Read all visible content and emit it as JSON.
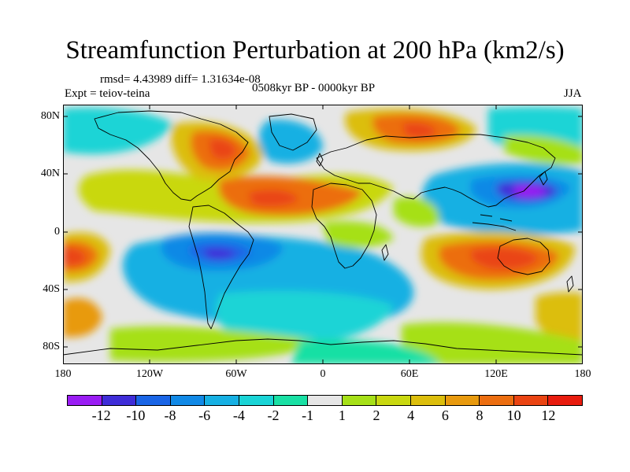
{
  "title": "Streamfunction Perturbation at 200 hPa (km2/s)",
  "stats": "rmsd= 4.43989  diff= 1.31634e-08",
  "experiment": "Expt = teiov-teina",
  "period": "0508kyr BP - 0000kyr BP",
  "season": "JJA",
  "map": {
    "projection": "cylindrical equidistant",
    "lon_range": [
      -180,
      180
    ],
    "lat_range": [
      -90,
      90
    ],
    "y_ticks": [
      "80N",
      "40N",
      "0",
      "40S",
      "80S"
    ],
    "x_ticks": [
      "180",
      "120W",
      "60W",
      "0",
      "60E",
      "120E",
      "180"
    ]
  },
  "colorbar": {
    "colors": [
      "#9a1df4",
      "#3f2dd8",
      "#1a65e6",
      "#1189e6",
      "#16b0e3",
      "#1ad4d6",
      "#19e0a4",
      "#e6e6e6",
      "#a6e018",
      "#c9d810",
      "#dcbe0c",
      "#e89a0e",
      "#ec6e10",
      "#ea4412",
      "#e81c0e"
    ],
    "labels": [
      "-12",
      "-10",
      "-8",
      "-6",
      "-4",
      "-2",
      "-1",
      "1",
      "2",
      "4",
      "6",
      "8",
      "10",
      "12"
    ]
  },
  "chart_data": {
    "type": "heatmap",
    "title": "Streamfunction Perturbation at 200 hPa (km2/s)",
    "units": "km2/s",
    "levels": [
      -12,
      -10,
      -8,
      -6,
      -4,
      -2,
      -1,
      1,
      2,
      4,
      6,
      8,
      10,
      12
    ],
    "field_features": [
      {
        "lon": -70,
        "lat": 60,
        "value": 10
      },
      {
        "lon": -55,
        "lat": 28,
        "value": 9
      },
      {
        "lon": 70,
        "lat": 67,
        "value": 10
      },
      {
        "lon": 155,
        "lat": 25,
        "value": -12
      },
      {
        "lon": -60,
        "lat": -15,
        "value": -11
      },
      {
        "lon": 120,
        "lat": -25,
        "value": 11
      },
      {
        "lon": -170,
        "lat": -15,
        "value": 11
      },
      {
        "lon": -175,
        "lat": -55,
        "value": 7
      },
      {
        "lon": -20,
        "lat": -35,
        "value": -3
      },
      {
        "lon": 40,
        "lat": 5,
        "value": 3
      }
    ]
  }
}
